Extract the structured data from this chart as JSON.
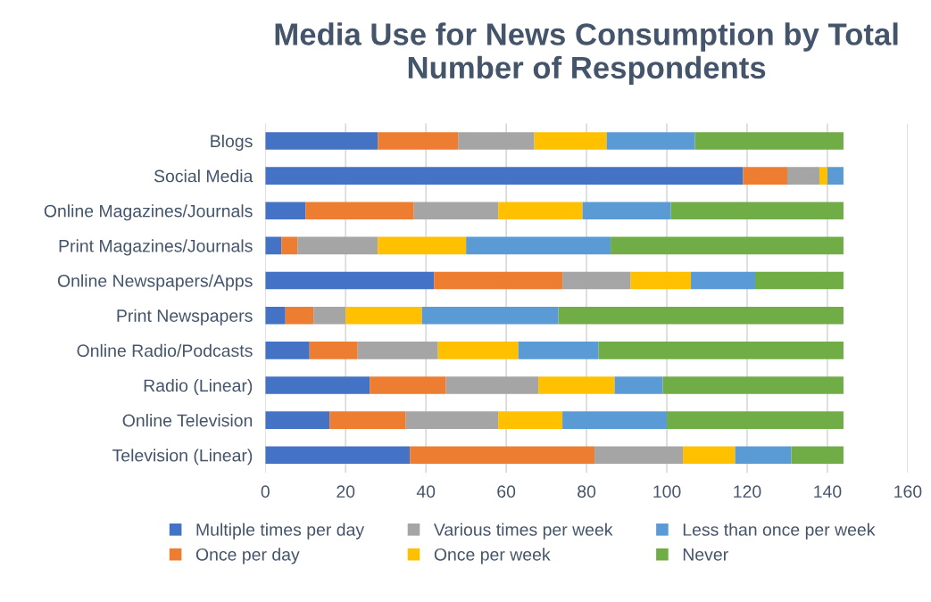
{
  "chart_data": {
    "type": "bar",
    "orientation": "horizontal",
    "stacked": true,
    "title": "Media Use for News Consumption by Total Number of Respondents",
    "categories": [
      "Blogs",
      "Social Media",
      "Online Magazines/Journals",
      "Print Magazines/Journals",
      "Online Newspapers/Apps",
      "Print Newspapers",
      "Online Radio/Podcasts",
      "Radio (Linear)",
      "Online Television",
      "Television (Linear)"
    ],
    "series": [
      {
        "name": "Multiple times per day",
        "color": "#4472c4",
        "values": [
          28,
          119,
          10,
          4,
          42,
          5,
          11,
          26,
          16,
          36
        ]
      },
      {
        "name": "Once per day",
        "color": "#ed7d31",
        "values": [
          20,
          11,
          27,
          4,
          32,
          7,
          12,
          19,
          19,
          46
        ]
      },
      {
        "name": "Various times per week",
        "color": "#a5a5a5",
        "values": [
          19,
          8,
          21,
          20,
          17,
          8,
          20,
          23,
          23,
          22
        ]
      },
      {
        "name": "Once per week",
        "color": "#ffc000",
        "values": [
          18,
          2,
          21,
          22,
          15,
          19,
          20,
          19,
          16,
          13
        ]
      },
      {
        "name": "Less than once per week",
        "color": "#5b9bd5",
        "values": [
          22,
          4,
          22,
          36,
          16,
          34,
          20,
          12,
          26,
          14
        ]
      },
      {
        "name": "Never",
        "color": "#70ad47",
        "values": [
          37,
          0,
          43,
          58,
          22,
          71,
          61,
          45,
          44,
          13
        ]
      }
    ],
    "xlim": [
      0,
      160
    ],
    "xticks": [
      0,
      20,
      40,
      60,
      80,
      100,
      120,
      140,
      160
    ],
    "grid": "x",
    "legend": "bottom"
  }
}
